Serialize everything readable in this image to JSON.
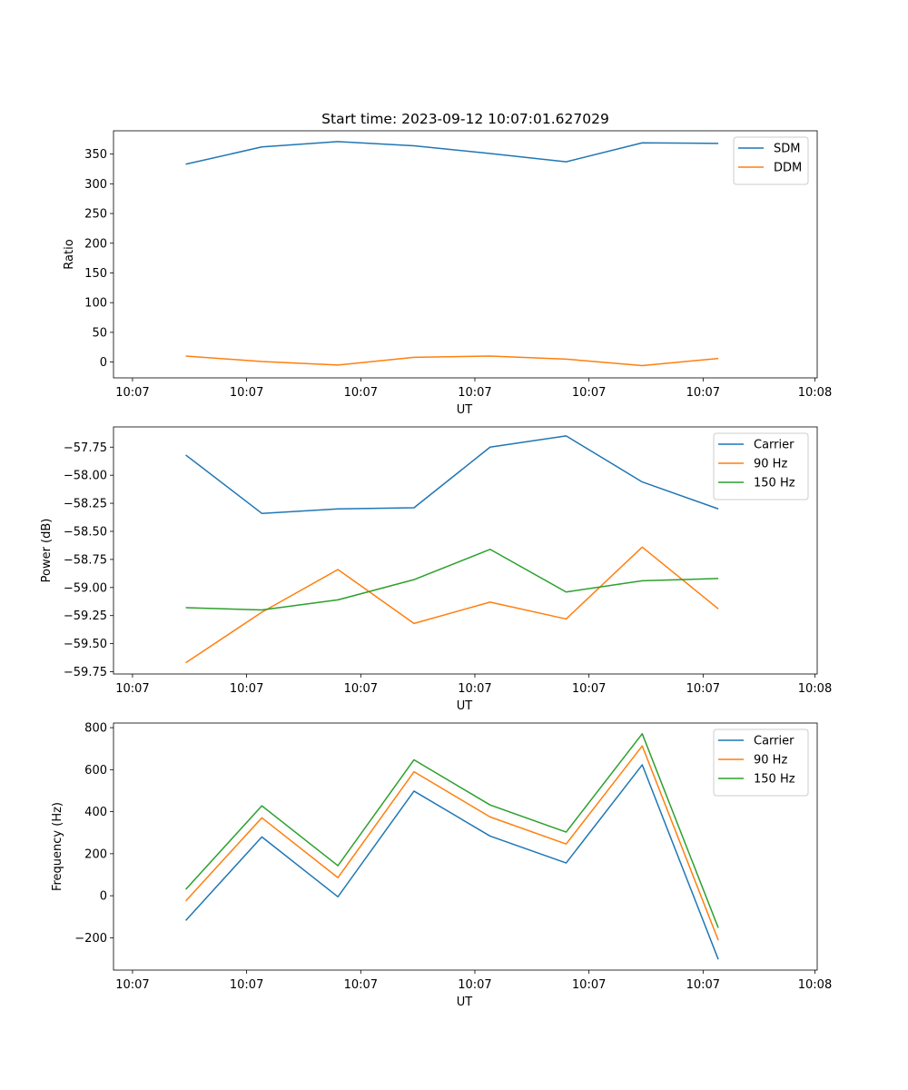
{
  "title": "Start time: 2023-09-12 10:07:01.627029",
  "colors": {
    "blue": "#1f77b4",
    "orange": "#ff7f0e",
    "green": "#2ca02c"
  },
  "chart_data": [
    {
      "type": "line",
      "title": "Start time: 2023-09-12 10:07:01.627029",
      "xlabel": "UT",
      "ylabel": "Ratio",
      "x": [
        1,
        2,
        3,
        4,
        5,
        6,
        7,
        8
      ],
      "xlim": [
        0.05,
        9.3
      ],
      "x_ticks": [
        0.3,
        1.8,
        3.3,
        4.8,
        6.3,
        7.8,
        9.27
      ],
      "x_tick_labels": [
        "10:07",
        "10:07",
        "10:07",
        "10:07",
        "10:07",
        "10:07",
        "10:08"
      ],
      "ylim": [
        -26.6,
        389.2
      ],
      "y_ticks": [
        0,
        50,
        100,
        150,
        200,
        250,
        300,
        350
      ],
      "y_tick_labels": [
        "0",
        "50",
        "100",
        "150",
        "200",
        "250",
        "300",
        "350"
      ],
      "legend": "top-right",
      "series": [
        {
          "name": "SDM",
          "color": "#1f77b4",
          "values": [
            333,
            362,
            371,
            364,
            351,
            337,
            369,
            368
          ]
        },
        {
          "name": "DDM",
          "color": "#ff7f0e",
          "values": [
            10,
            1,
            -5,
            8,
            10,
            5,
            -6,
            6
          ]
        }
      ]
    },
    {
      "type": "line",
      "title": "",
      "xlabel": "UT",
      "ylabel": "Power (dB)",
      "x": [
        1,
        2,
        3,
        4,
        5,
        6,
        7,
        8
      ],
      "xlim": [
        0.05,
        9.3
      ],
      "x_ticks": [
        0.3,
        1.8,
        3.3,
        4.8,
        6.3,
        7.8,
        9.27
      ],
      "x_tick_labels": [
        "10:07",
        "10:07",
        "10:07",
        "10:07",
        "10:07",
        "10:07",
        "10:08"
      ],
      "ylim": [
        -59.77,
        -57.57
      ],
      "y_ticks": [
        -57.75,
        -58.0,
        -58.25,
        -58.5,
        -58.75,
        -59.0,
        -59.25,
        -59.5,
        -59.75
      ],
      "y_tick_labels": [
        "−57.75",
        "−58.00",
        "−58.25",
        "−58.50",
        "−58.75",
        "−59.00",
        "−59.25",
        "−59.50",
        "−59.75"
      ],
      "legend": "top-right",
      "series": [
        {
          "name": "Carrier",
          "color": "#1f77b4",
          "values": [
            -57.82,
            -58.34,
            -58.3,
            -58.29,
            -57.75,
            -57.65,
            -58.06,
            -58.3
          ]
        },
        {
          "name": "90 Hz",
          "color": "#ff7f0e",
          "values": [
            -59.67,
            -59.22,
            -58.84,
            -59.32,
            -59.13,
            -59.28,
            -58.64,
            -59.19
          ]
        },
        {
          "name": "150 Hz",
          "color": "#2ca02c",
          "values": [
            -59.18,
            -59.2,
            -59.11,
            -58.93,
            -58.66,
            -59.04,
            -58.94,
            -58.92
          ]
        }
      ]
    },
    {
      "type": "line",
      "title": "",
      "xlabel": "UT",
      "ylabel": "Frequency (Hz)",
      "x": [
        1,
        2,
        3,
        4,
        5,
        6,
        7,
        8
      ],
      "xlim": [
        0.05,
        9.3
      ],
      "x_ticks": [
        0.3,
        1.8,
        3.3,
        4.8,
        6.3,
        7.8,
        9.27
      ],
      "x_tick_labels": [
        "10:07",
        "10:07",
        "10:07",
        "10:07",
        "10:07",
        "10:07",
        "10:08"
      ],
      "ylim": [
        -354,
        822
      ],
      "y_ticks": [
        -200,
        0,
        200,
        400,
        600,
        800
      ],
      "y_tick_labels": [
        "−200",
        "0",
        "200",
        "400",
        "600",
        "800"
      ],
      "legend": "top-right",
      "series": [
        {
          "name": "Carrier",
          "color": "#1f77b4",
          "values": [
            -118,
            280,
            -5,
            498,
            284,
            156,
            623,
            -303
          ]
        },
        {
          "name": "90 Hz",
          "color": "#ff7f0e",
          "values": [
            -25,
            371,
            86,
            590,
            375,
            246,
            713,
            -212
          ]
        },
        {
          "name": "150 Hz",
          "color": "#2ca02c",
          "values": [
            30,
            428,
            143,
            647,
            432,
            303,
            771,
            -153
          ]
        }
      ]
    }
  ]
}
